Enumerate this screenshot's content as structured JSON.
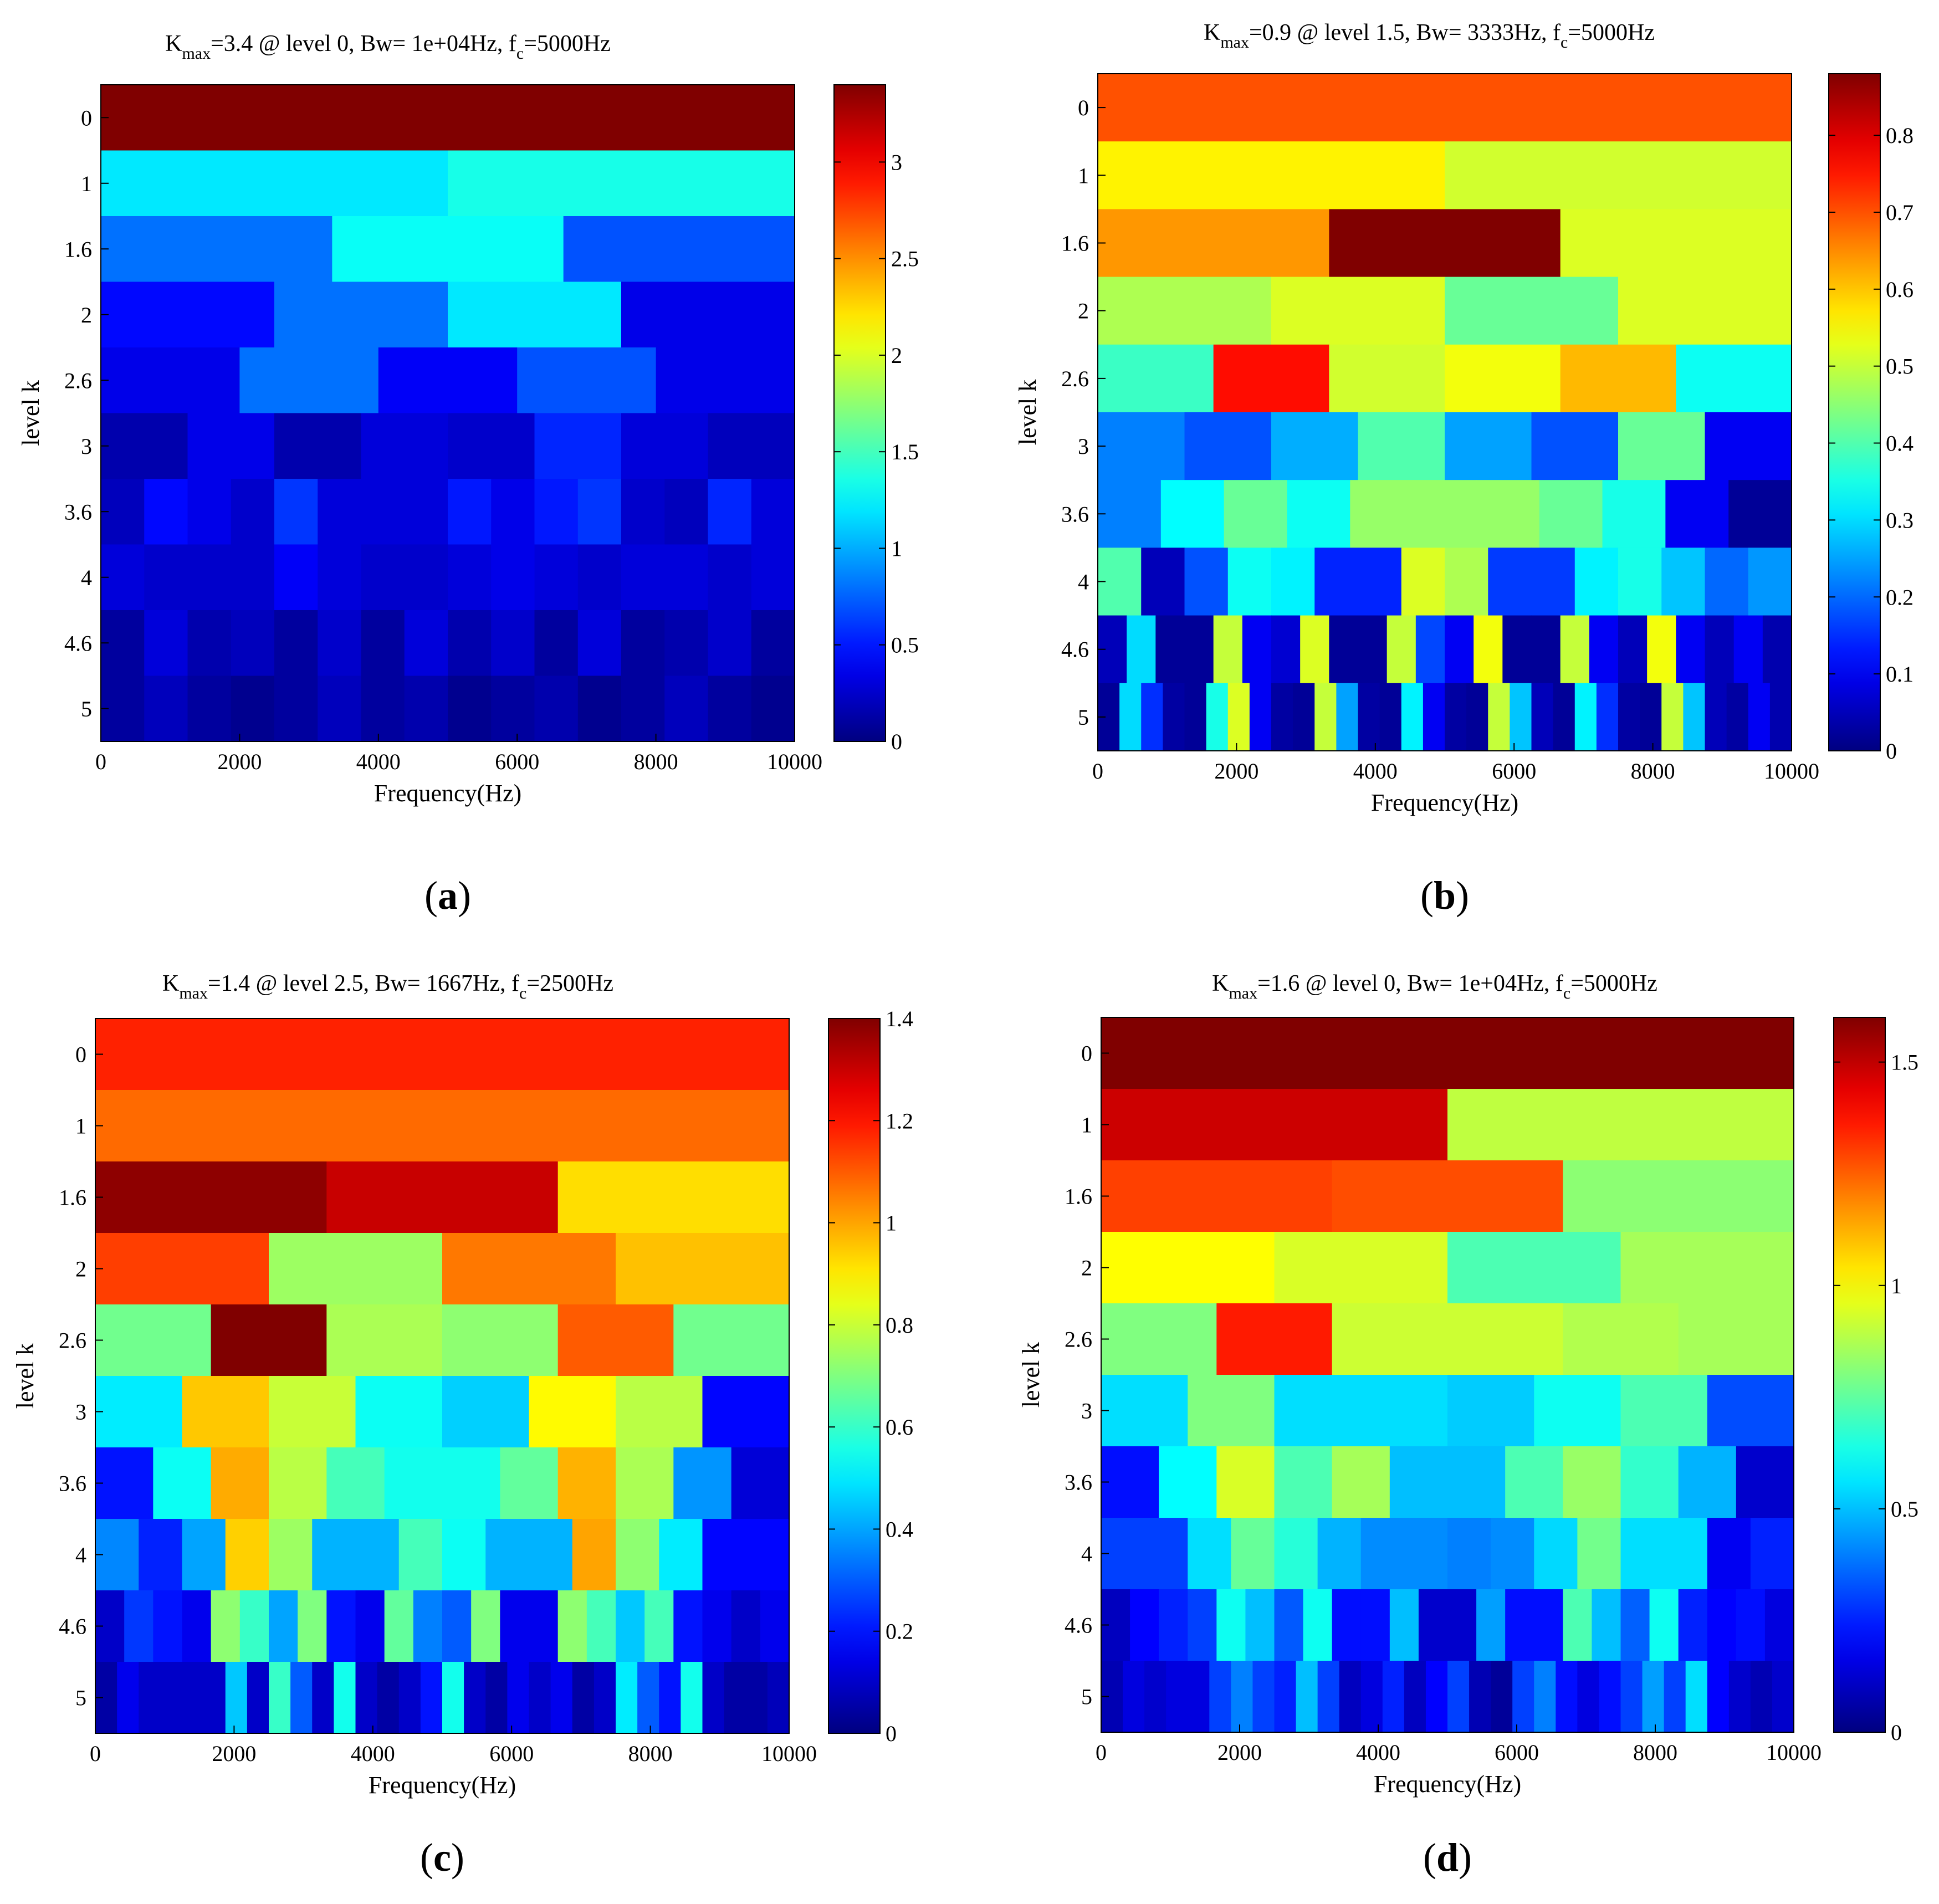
{
  "chart_data": [
    {
      "id": "a",
      "type": "heatmap",
      "label": "a",
      "title": {
        "k": "K",
        "max_sub": "max",
        "kmax": "=3.4 @ level 0, Bw= 1e+04Hz, f",
        "c_sub": "c",
        "fc": "=5000Hz"
      },
      "xlabel": "Frequency(Hz)",
      "ylabel": "level k",
      "xlim": [
        0,
        10000
      ],
      "xticks": [
        0,
        2000,
        4000,
        6000,
        8000,
        10000
      ],
      "levels": [
        "0",
        "1",
        "1.6",
        "2",
        "2.6",
        "3",
        "3.6",
        "4",
        "4.6",
        "5"
      ],
      "clim": [
        0,
        3.4
      ],
      "cticks": [
        0,
        0.5,
        1,
        1.5,
        2,
        2.5,
        3
      ],
      "rows": [
        [
          3.4
        ],
        [
          1.2,
          1.35
        ],
        [
          0.8,
          1.3,
          0.7
        ],
        [
          0.45,
          0.8,
          1.2,
          0.35
        ],
        [
          0.35,
          0.8,
          0.4,
          0.7,
          0.35
        ],
        [
          0.15,
          0.35,
          0.15,
          0.3,
          0.25,
          0.55,
          0.3,
          0.2
        ],
        [
          0.2,
          0.45,
          0.35,
          0.25,
          0.6,
          0.3,
          0.3,
          0.3,
          0.5,
          0.35,
          0.5,
          0.6,
          0.25,
          0.2,
          0.55,
          0.3
        ],
        [
          0.3,
          0.25,
          0.25,
          0.25,
          0.4,
          0.3,
          0.25,
          0.25,
          0.3,
          0.35,
          0.3,
          0.25,
          0.3,
          0.3,
          0.25,
          0.3
        ],
        [
          0.1,
          0.3,
          0.15,
          0.2,
          0.1,
          0.25,
          0.1,
          0.3,
          0.15,
          0.25,
          0.1,
          0.3,
          0.1,
          0.15,
          0.25,
          0.1
        ],
        [
          0.1,
          0.2,
          0.1,
          0.05,
          0.1,
          0.2,
          0.1,
          0.15,
          0.05,
          0.1,
          0.15,
          0.05,
          0.1,
          0.2,
          0.1,
          0.05
        ]
      ]
    },
    {
      "id": "b",
      "type": "heatmap",
      "label": "b",
      "title": {
        "k": "K",
        "max_sub": "max",
        "kmax": "=0.9 @ level 1.5, Bw= 3333Hz, f",
        "c_sub": "c",
        "fc": "=5000Hz"
      },
      "xlabel": "Frequency(Hz)",
      "ylabel": "level k",
      "xlim": [
        0,
        10000
      ],
      "xticks": [
        0,
        2000,
        4000,
        6000,
        8000,
        10000
      ],
      "levels": [
        "0",
        "1",
        "1.6",
        "2",
        "2.6",
        "3",
        "3.6",
        "4",
        "4.6",
        "5"
      ],
      "clim": [
        0,
        0.88
      ],
      "cticks": [
        0,
        0.1,
        0.2,
        0.3,
        0.4,
        0.5,
        0.6,
        0.7,
        0.8
      ],
      "rows": [
        [
          0.7
        ],
        [
          0.56,
          0.51
        ],
        [
          0.64,
          0.88,
          0.52
        ],
        [
          0.48,
          0.52,
          0.42,
          0.52
        ],
        [
          0.38,
          0.76,
          0.51,
          0.54,
          0.61,
          0.34
        ],
        [
          0.22,
          0.18,
          0.26,
          0.4,
          0.25,
          0.18,
          0.42,
          0.1
        ],
        [
          0.22,
          0.33,
          0.42,
          0.34,
          0.46,
          0.46,
          0.46,
          0.42,
          0.35,
          0.1,
          0.02
        ],
        [
          0.4,
          0.05,
          0.18,
          0.34,
          0.32,
          0.14,
          0.14,
          0.52,
          0.48,
          0.16,
          0.16,
          0.32,
          0.35,
          0.28,
          0.2,
          0.24
        ],
        [
          0.05,
          0.3,
          0.02,
          0.02,
          0.5,
          0.1,
          0.07,
          0.52,
          0.02,
          0.02,
          0.5,
          0.17,
          0.1,
          0.54,
          0.02,
          0.02,
          0.5,
          0.1,
          0.05,
          0.54,
          0.1,
          0.05,
          0.1,
          0.04
        ],
        [
          0.02,
          0.3,
          0.15,
          0.03,
          0.02,
          0.35,
          0.52,
          0.1,
          0.03,
          0.02,
          0.5,
          0.25,
          0.03,
          0.02,
          0.32,
          0.1,
          0.03,
          0.02,
          0.5,
          0.28,
          0.05,
          0.02,
          0.32,
          0.15,
          0.03,
          0.02,
          0.5,
          0.28,
          0.05,
          0.03,
          0.1,
          0.04
        ]
      ]
    },
    {
      "id": "c",
      "type": "heatmap",
      "label": "c",
      "title": {
        "k": "K",
        "max_sub": "max",
        "kmax": "=1.4 @ level 2.5, Bw= 1667Hz, f",
        "c_sub": "c",
        "fc": "=2500Hz"
      },
      "xlabel": "Frequency(Hz)",
      "ylabel": "level k",
      "xlim": [
        0,
        10000
      ],
      "xticks": [
        0,
        2000,
        4000,
        6000,
        8000,
        10000
      ],
      "levels": [
        "0",
        "1",
        "1.6",
        "2",
        "2.6",
        "3",
        "3.6",
        "4",
        "4.6",
        "5"
      ],
      "clim": [
        0,
        1.4
      ],
      "cticks": [
        0,
        0.2,
        0.4,
        0.6,
        0.8,
        1,
        1.2,
        1.4
      ],
      "rows": [
        [
          1.18
        ],
        [
          1.08
        ],
        [
          1.38,
          1.3,
          0.92
        ],
        [
          1.14,
          0.74,
          1.06,
          0.96
        ],
        [
          0.68,
          1.4,
          0.76,
          0.72,
          1.1,
          0.68
        ],
        [
          0.5,
          0.95,
          0.8,
          0.54,
          0.46,
          0.88,
          0.78,
          0.18
        ],
        [
          0.2,
          0.54,
          0.99,
          0.78,
          0.62,
          0.55,
          0.55,
          0.66,
          0.98,
          0.76,
          0.38,
          0.12
        ],
        [
          0.36,
          0.22,
          0.4,
          0.94,
          0.74,
          0.42,
          0.42,
          0.62,
          0.54,
          0.42,
          0.42,
          1.0,
          0.72,
          0.5,
          0.18,
          0.18
        ],
        [
          0.1,
          0.25,
          0.2,
          0.15,
          0.72,
          0.6,
          0.4,
          0.7,
          0.2,
          0.15,
          0.66,
          0.35,
          0.3,
          0.7,
          0.15,
          0.15,
          0.72,
          0.62,
          0.45,
          0.62,
          0.2,
          0.15,
          0.1,
          0.15
        ],
        [
          0.05,
          0.15,
          0.1,
          0.1,
          0.1,
          0.1,
          0.45,
          0.1,
          0.6,
          0.3,
          0.1,
          0.55,
          0.1,
          0.05,
          0.1,
          0.2,
          0.55,
          0.1,
          0.05,
          0.15,
          0.1,
          0.15,
          0.05,
          0.1,
          0.5,
          0.3,
          0.2,
          0.55,
          0.1,
          0.05,
          0.05,
          0.08
        ]
      ]
    },
    {
      "id": "d",
      "type": "heatmap",
      "label": "d",
      "title": {
        "k": "K",
        "max_sub": "max",
        "kmax": "=1.6 @ level 0, Bw= 1e+04Hz, f",
        "c_sub": "c",
        "fc": "=5000Hz"
      },
      "xlabel": "Frequency(Hz)",
      "ylabel": "level k",
      "xlim": [
        0,
        10000
      ],
      "xticks": [
        0,
        2000,
        4000,
        6000,
        8000,
        10000
      ],
      "levels": [
        "0",
        "1",
        "1.6",
        "2",
        "2.6",
        "3",
        "3.6",
        "4",
        "4.6",
        "5"
      ],
      "clim": [
        0,
        1.6
      ],
      "cticks": [
        0,
        0.5,
        1,
        1.5
      ],
      "rows": [
        [
          1.6
        ],
        [
          1.48,
          0.9
        ],
        [
          1.3,
          1.28,
          0.82
        ],
        [
          1.0,
          0.94,
          0.72,
          0.86
        ],
        [
          0.8,
          1.36,
          0.92,
          0.92,
          0.88,
          0.86
        ],
        [
          0.55,
          0.8,
          0.55,
          0.55,
          0.52,
          0.62,
          0.72,
          0.32
        ],
        [
          0.22,
          0.6,
          0.94,
          0.72,
          0.86,
          0.5,
          0.5,
          0.72,
          0.84,
          0.68,
          0.48,
          0.12
        ],
        [
          0.3,
          0.3,
          0.55,
          0.76,
          0.66,
          0.48,
          0.42,
          0.42,
          0.4,
          0.42,
          0.54,
          0.78,
          0.55,
          0.55,
          0.18,
          0.25
        ],
        [
          0.1,
          0.2,
          0.25,
          0.3,
          0.62,
          0.5,
          0.34,
          0.62,
          0.22,
          0.22,
          0.5,
          0.12,
          0.12,
          0.45,
          0.22,
          0.22,
          0.72,
          0.5,
          0.35,
          0.62,
          0.25,
          0.2,
          0.22,
          0.15
        ],
        [
          0.08,
          0.15,
          0.12,
          0.15,
          0.15,
          0.3,
          0.4,
          0.3,
          0.25,
          0.5,
          0.3,
          0.1,
          0.15,
          0.25,
          0.1,
          0.2,
          0.3,
          0.08,
          0.04,
          0.3,
          0.4,
          0.22,
          0.15,
          0.22,
          0.3,
          0.45,
          0.3,
          0.55,
          0.2,
          0.12,
          0.08,
          0.12
        ]
      ]
    }
  ]
}
